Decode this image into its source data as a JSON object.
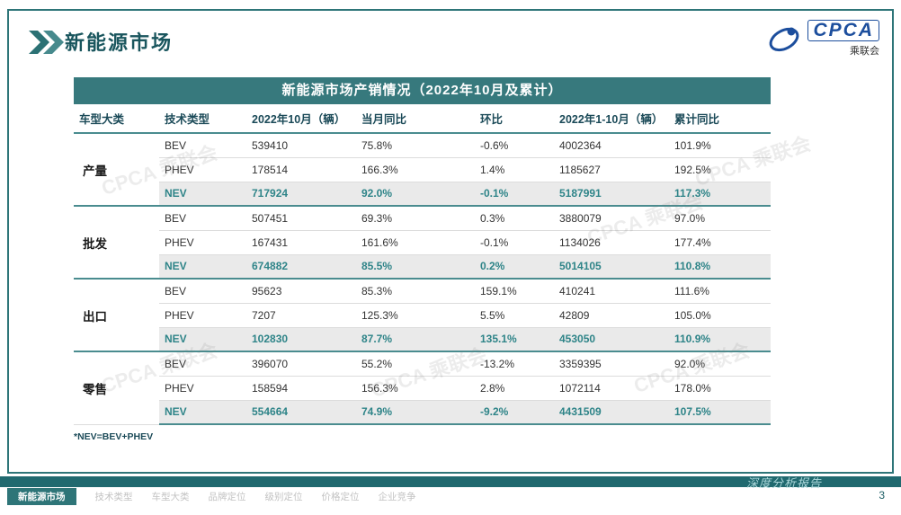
{
  "slide": {
    "title": "新能源市场",
    "page_number": "3",
    "report_label": "深度分析报告",
    "watermark": "CPCA 乘联会"
  },
  "logo": {
    "name": "CPCA",
    "cn": "乘联会"
  },
  "table": {
    "title": "新能源市场产销情况（2022年10月及累计）",
    "headers": [
      "车型大类",
      "技术类型",
      "2022年10月（辆）",
      "当月同比",
      "环比",
      "2022年1-10月（辆）",
      "累计同比"
    ],
    "footnote": "*NEV=BEV+PHEV",
    "groups": [
      {
        "category": "产量",
        "rows": [
          {
            "type": "BEV",
            "values": [
              "539410",
              "75.8%",
              "-0.6%",
              "4002364",
              "101.9%"
            ],
            "highlight": false
          },
          {
            "type": "PHEV",
            "values": [
              "178514",
              "166.3%",
              "1.4%",
              "1185627",
              "192.5%"
            ],
            "highlight": false
          },
          {
            "type": "NEV",
            "values": [
              "717924",
              "92.0%",
              "-0.1%",
              "5187991",
              "117.3%"
            ],
            "highlight": true
          }
        ]
      },
      {
        "category": "批发",
        "rows": [
          {
            "type": "BEV",
            "values": [
              "507451",
              "69.3%",
              "0.3%",
              "3880079",
              "97.0%"
            ],
            "highlight": false
          },
          {
            "type": "PHEV",
            "values": [
              "167431",
              "161.6%",
              "-0.1%",
              "1134026",
              "177.4%"
            ],
            "highlight": false
          },
          {
            "type": "NEV",
            "values": [
              "674882",
              "85.5%",
              "0.2%",
              "5014105",
              "110.8%"
            ],
            "highlight": true
          }
        ]
      },
      {
        "category": "出口",
        "rows": [
          {
            "type": "BEV",
            "values": [
              "95623",
              "85.3%",
              "159.1%",
              "410241",
              "111.6%"
            ],
            "highlight": false
          },
          {
            "type": "PHEV",
            "values": [
              "7207",
              "125.3%",
              "5.5%",
              "42809",
              "105.0%"
            ],
            "highlight": false
          },
          {
            "type": "NEV",
            "values": [
              "102830",
              "87.7%",
              "135.1%",
              "453050",
              "110.9%"
            ],
            "highlight": true
          }
        ]
      },
      {
        "category": "零售",
        "rows": [
          {
            "type": "BEV",
            "values": [
              "396070",
              "55.2%",
              "-13.2%",
              "3359395",
              "92.0%"
            ],
            "highlight": false
          },
          {
            "type": "PHEV",
            "values": [
              "158594",
              "156.3%",
              "2.8%",
              "1072114",
              "178.0%"
            ],
            "highlight": false
          },
          {
            "type": "NEV",
            "values": [
              "554664",
              "74.9%",
              "-9.2%",
              "4431509",
              "107.5%"
            ],
            "highlight": true
          }
        ]
      }
    ]
  },
  "footer": {
    "tabs": [
      {
        "label": "新能源市场",
        "active": true
      },
      {
        "label": "技术类型",
        "active": false
      },
      {
        "label": "车型大类",
        "active": false
      },
      {
        "label": "品牌定位",
        "active": false
      },
      {
        "label": "级别定位",
        "active": false
      },
      {
        "label": "价格定位",
        "active": false
      },
      {
        "label": "企业竞争",
        "active": false
      }
    ]
  }
}
